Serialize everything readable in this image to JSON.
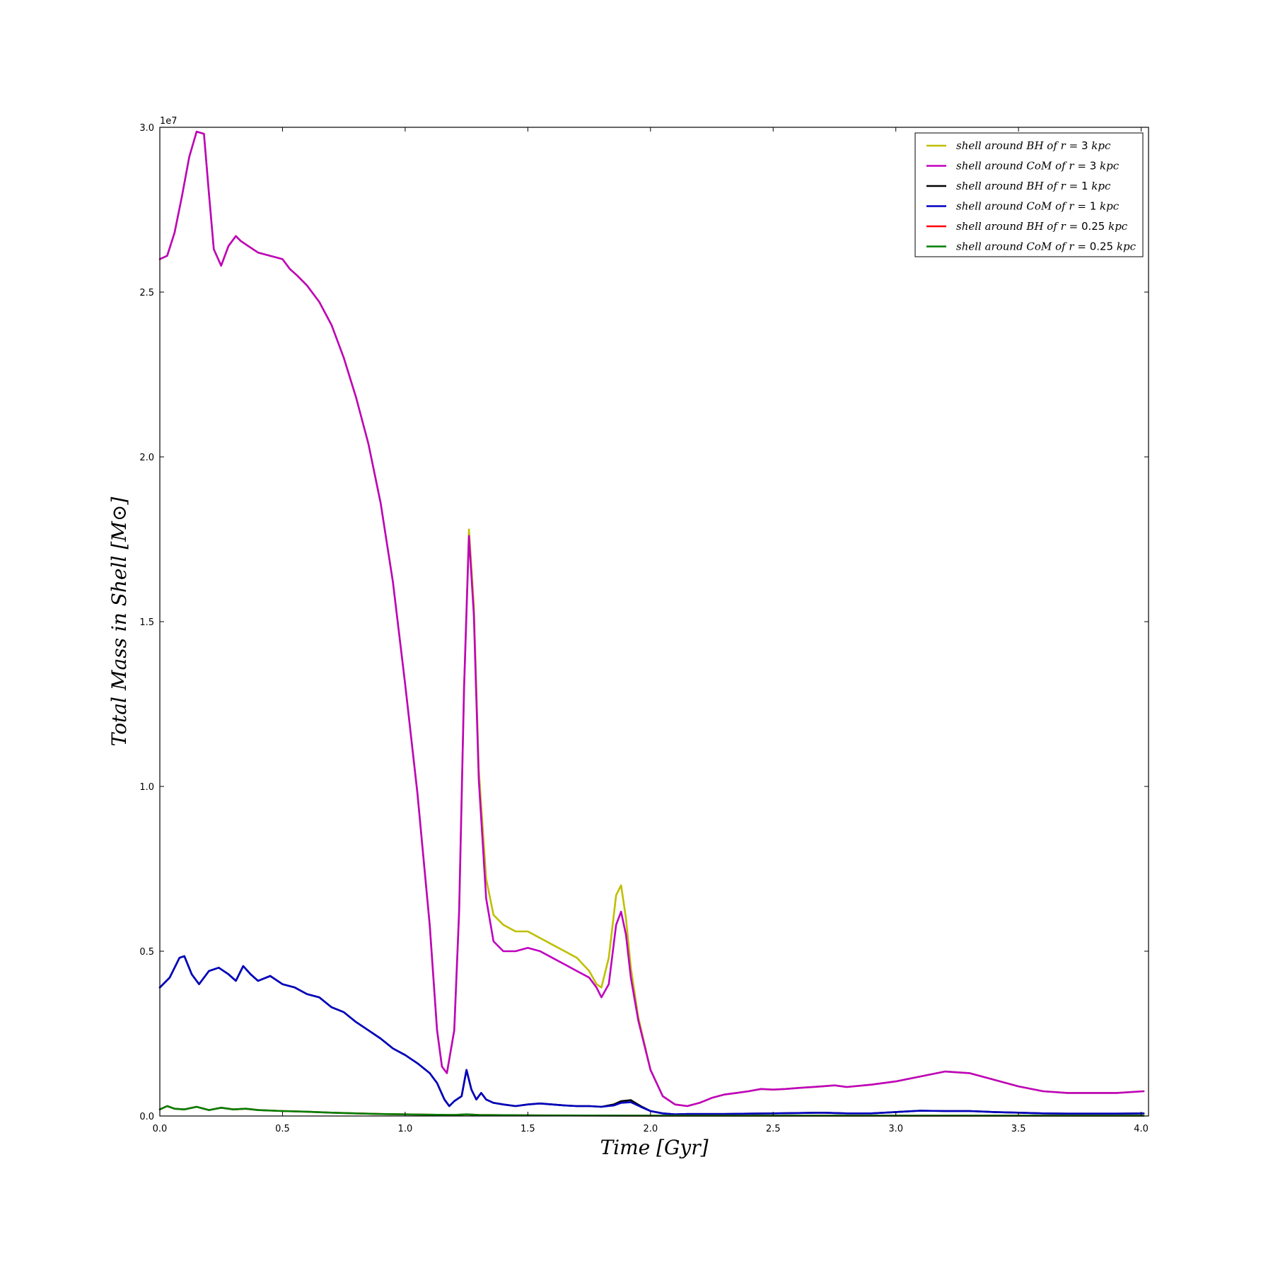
{
  "chart_data": {
    "type": "line",
    "xlabel": "Time [Gyr]",
    "ylabel": "Total Mass in Shell [M⊙]",
    "xlim": [
      0.0,
      4.03
    ],
    "ylim": [
      0.0,
      3.0
    ],
    "y_scale_label": "1e7",
    "xticks": [
      "0.0",
      "0.5",
      "1.0",
      "1.5",
      "2.0",
      "2.5",
      "3.0",
      "3.5",
      "4.0"
    ],
    "yticks": [
      "0.0",
      "0.5",
      "1.0",
      "1.5",
      "2.0",
      "2.5",
      "3.0"
    ],
    "grid": false,
    "legend_position": "top-right",
    "series": [
      {
        "name": "shell around BH of r = 3 kpc",
        "color": "#bfbf00",
        "x": [
          0.0,
          0.03,
          0.06,
          0.09,
          0.12,
          0.15,
          0.18,
          0.2,
          0.22,
          0.25,
          0.28,
          0.31,
          0.33,
          0.36,
          0.4,
          0.45,
          0.5,
          0.53,
          0.56,
          0.6,
          0.65,
          0.7,
          0.75,
          0.8,
          0.85,
          0.9,
          0.95,
          1.0,
          1.05,
          1.1,
          1.13,
          1.15,
          1.17,
          1.2,
          1.22,
          1.24,
          1.26,
          1.28,
          1.3,
          1.33,
          1.36,
          1.4,
          1.45,
          1.5,
          1.55,
          1.6,
          1.65,
          1.7,
          1.75,
          1.78,
          1.8,
          1.83,
          1.86,
          1.88,
          1.9,
          1.92,
          1.95,
          2.0,
          2.05,
          2.1,
          2.15,
          2.2,
          2.25,
          2.3,
          2.35,
          2.4,
          2.45,
          2.5,
          2.55,
          2.6,
          2.7,
          2.75,
          2.8,
          2.9,
          3.0,
          3.1,
          3.2,
          3.3,
          3.4,
          3.5,
          3.6,
          3.7,
          3.8,
          3.9,
          4.01
        ],
        "y": [
          2.6,
          2.61,
          2.68,
          2.79,
          2.91,
          2.987,
          2.98,
          2.8,
          2.63,
          2.58,
          2.64,
          2.67,
          2.655,
          2.64,
          2.62,
          2.61,
          2.6,
          2.57,
          2.55,
          2.52,
          2.47,
          2.4,
          2.3,
          2.18,
          2.04,
          1.86,
          1.62,
          1.31,
          0.98,
          0.58,
          0.26,
          0.15,
          0.13,
          0.26,
          0.62,
          1.3,
          1.78,
          1.55,
          1.05,
          0.72,
          0.61,
          0.58,
          0.56,
          0.56,
          0.54,
          0.52,
          0.5,
          0.48,
          0.44,
          0.4,
          0.39,
          0.48,
          0.67,
          0.7,
          0.6,
          0.45,
          0.3,
          0.14,
          0.06,
          0.035,
          0.03,
          0.04,
          0.055,
          0.065,
          0.07,
          0.075,
          0.082,
          0.08,
          0.082,
          0.085,
          0.09,
          0.093,
          0.088,
          0.095,
          0.105,
          0.12,
          0.135,
          0.13,
          0.11,
          0.09,
          0.075,
          0.07,
          0.07,
          0.07,
          0.075
        ]
      },
      {
        "name": "shell around CoM of r = 3 kpc",
        "color": "#bf00bf",
        "x": [
          0.0,
          0.03,
          0.06,
          0.09,
          0.12,
          0.15,
          0.18,
          0.2,
          0.22,
          0.25,
          0.28,
          0.31,
          0.33,
          0.36,
          0.4,
          0.45,
          0.5,
          0.53,
          0.56,
          0.6,
          0.65,
          0.7,
          0.75,
          0.8,
          0.85,
          0.9,
          0.95,
          1.0,
          1.05,
          1.1,
          1.13,
          1.15,
          1.17,
          1.2,
          1.22,
          1.24,
          1.26,
          1.28,
          1.3,
          1.33,
          1.36,
          1.4,
          1.45,
          1.5,
          1.55,
          1.6,
          1.65,
          1.7,
          1.75,
          1.78,
          1.8,
          1.83,
          1.86,
          1.88,
          1.9,
          1.92,
          1.95,
          2.0,
          2.05,
          2.1,
          2.15,
          2.2,
          2.25,
          2.3,
          2.35,
          2.4,
          2.45,
          2.5,
          2.55,
          2.6,
          2.7,
          2.75,
          2.8,
          2.9,
          3.0,
          3.1,
          3.2,
          3.3,
          3.4,
          3.5,
          3.6,
          3.7,
          3.8,
          3.9,
          4.01
        ],
        "y": [
          2.6,
          2.61,
          2.68,
          2.79,
          2.91,
          2.987,
          2.98,
          2.8,
          2.63,
          2.58,
          2.64,
          2.67,
          2.655,
          2.64,
          2.62,
          2.61,
          2.6,
          2.57,
          2.55,
          2.52,
          2.47,
          2.4,
          2.3,
          2.18,
          2.04,
          1.86,
          1.62,
          1.31,
          0.98,
          0.58,
          0.26,
          0.15,
          0.13,
          0.26,
          0.62,
          1.3,
          1.76,
          1.52,
          1.02,
          0.66,
          0.53,
          0.5,
          0.5,
          0.51,
          0.5,
          0.48,
          0.46,
          0.44,
          0.42,
          0.39,
          0.36,
          0.4,
          0.58,
          0.62,
          0.55,
          0.42,
          0.29,
          0.14,
          0.06,
          0.035,
          0.03,
          0.04,
          0.055,
          0.065,
          0.07,
          0.075,
          0.082,
          0.08,
          0.082,
          0.085,
          0.09,
          0.093,
          0.088,
          0.095,
          0.105,
          0.12,
          0.135,
          0.13,
          0.11,
          0.09,
          0.075,
          0.07,
          0.07,
          0.07,
          0.075
        ]
      },
      {
        "name": "shell around BH of r = 1 kpc",
        "color": "#000000",
        "x": [
          0.0,
          0.04,
          0.08,
          0.1,
          0.13,
          0.16,
          0.2,
          0.24,
          0.28,
          0.31,
          0.34,
          0.37,
          0.4,
          0.45,
          0.5,
          0.55,
          0.6,
          0.65,
          0.7,
          0.75,
          0.8,
          0.85,
          0.9,
          0.95,
          1.0,
          1.05,
          1.1,
          1.13,
          1.16,
          1.18,
          1.2,
          1.23,
          1.25,
          1.27,
          1.29,
          1.31,
          1.33,
          1.36,
          1.4,
          1.45,
          1.5,
          1.55,
          1.6,
          1.65,
          1.7,
          1.75,
          1.8,
          1.85,
          1.88,
          1.92,
          1.96,
          2.0,
          2.05,
          2.1,
          2.15,
          2.2,
          2.3,
          2.4,
          2.5,
          2.6,
          2.7,
          2.8,
          2.9,
          3.0,
          3.1,
          3.2,
          3.3,
          3.4,
          3.5,
          3.6,
          3.7,
          3.8,
          3.9,
          4.01
        ],
        "y": [
          0.39,
          0.42,
          0.48,
          0.485,
          0.43,
          0.4,
          0.44,
          0.45,
          0.43,
          0.41,
          0.455,
          0.43,
          0.41,
          0.425,
          0.4,
          0.39,
          0.37,
          0.36,
          0.33,
          0.315,
          0.285,
          0.26,
          0.235,
          0.205,
          0.185,
          0.16,
          0.13,
          0.1,
          0.05,
          0.03,
          0.045,
          0.06,
          0.14,
          0.08,
          0.05,
          0.07,
          0.05,
          0.04,
          0.035,
          0.03,
          0.035,
          0.038,
          0.035,
          0.032,
          0.03,
          0.03,
          0.028,
          0.035,
          0.045,
          0.048,
          0.03,
          0.015,
          0.008,
          0.005,
          0.006,
          0.006,
          0.006,
          0.007,
          0.008,
          0.009,
          0.01,
          0.008,
          0.008,
          0.012,
          0.016,
          0.015,
          0.015,
          0.012,
          0.01,
          0.008,
          0.007,
          0.007,
          0.007,
          0.008
        ]
      },
      {
        "name": "shell around CoM of r = 1 kpc",
        "color": "#0000bf",
        "x": [
          0.0,
          0.04,
          0.08,
          0.1,
          0.13,
          0.16,
          0.2,
          0.24,
          0.28,
          0.31,
          0.34,
          0.37,
          0.4,
          0.45,
          0.5,
          0.55,
          0.6,
          0.65,
          0.7,
          0.75,
          0.8,
          0.85,
          0.9,
          0.95,
          1.0,
          1.05,
          1.1,
          1.13,
          1.16,
          1.18,
          1.2,
          1.23,
          1.25,
          1.27,
          1.29,
          1.31,
          1.33,
          1.36,
          1.4,
          1.45,
          1.5,
          1.55,
          1.6,
          1.65,
          1.7,
          1.75,
          1.8,
          1.85,
          1.88,
          1.92,
          1.96,
          2.0,
          2.05,
          2.1,
          2.15,
          2.2,
          2.3,
          2.4,
          2.5,
          2.6,
          2.7,
          2.8,
          2.9,
          3.0,
          3.1,
          3.2,
          3.3,
          3.4,
          3.5,
          3.6,
          3.7,
          3.8,
          3.9,
          4.01
        ],
        "y": [
          0.39,
          0.42,
          0.48,
          0.485,
          0.43,
          0.4,
          0.44,
          0.45,
          0.43,
          0.41,
          0.455,
          0.43,
          0.41,
          0.425,
          0.4,
          0.39,
          0.37,
          0.36,
          0.33,
          0.315,
          0.285,
          0.26,
          0.235,
          0.205,
          0.185,
          0.16,
          0.13,
          0.1,
          0.05,
          0.03,
          0.045,
          0.06,
          0.14,
          0.08,
          0.05,
          0.07,
          0.05,
          0.04,
          0.035,
          0.03,
          0.035,
          0.038,
          0.035,
          0.032,
          0.03,
          0.03,
          0.028,
          0.032,
          0.04,
          0.042,
          0.028,
          0.015,
          0.008,
          0.005,
          0.006,
          0.006,
          0.006,
          0.007,
          0.008,
          0.009,
          0.01,
          0.008,
          0.008,
          0.012,
          0.016,
          0.015,
          0.015,
          0.012,
          0.01,
          0.008,
          0.007,
          0.007,
          0.007,
          0.008
        ]
      },
      {
        "name": "shell around BH of r = 0.25 kpc",
        "color": "#ff0000",
        "x": [
          0.0,
          0.03,
          0.06,
          0.1,
          0.15,
          0.2,
          0.25,
          0.3,
          0.35,
          0.4,
          0.5,
          0.6,
          0.7,
          0.8,
          0.9,
          1.0,
          1.2,
          1.25,
          1.3,
          1.5,
          2.0,
          2.5,
          3.0,
          3.5,
          4.01
        ],
        "y": [
          0.02,
          0.03,
          0.022,
          0.02,
          0.028,
          0.018,
          0.025,
          0.02,
          0.022,
          0.018,
          0.015,
          0.013,
          0.01,
          0.008,
          0.006,
          0.005,
          0.003,
          0.005,
          0.003,
          0.002,
          0.001,
          0.001,
          0.001,
          0.001,
          0.001
        ]
      },
      {
        "name": "shell around CoM of r = 0.25 kpc",
        "color": "#007f00",
        "x": [
          0.0,
          0.03,
          0.06,
          0.1,
          0.15,
          0.2,
          0.25,
          0.3,
          0.35,
          0.4,
          0.5,
          0.6,
          0.7,
          0.8,
          0.9,
          1.0,
          1.2,
          1.25,
          1.3,
          1.5,
          2.0,
          2.5,
          3.0,
          3.5,
          4.01
        ],
        "y": [
          0.02,
          0.03,
          0.022,
          0.02,
          0.028,
          0.018,
          0.025,
          0.02,
          0.022,
          0.018,
          0.015,
          0.013,
          0.01,
          0.008,
          0.006,
          0.005,
          0.003,
          0.005,
          0.003,
          0.002,
          0.001,
          0.001,
          0.001,
          0.001,
          0.001
        ]
      }
    ],
    "legend": [
      {
        "prefix": "shell around BH of r =",
        "value": "3",
        "unit": "kpc",
        "color": "#bfbf00"
      },
      {
        "prefix": "shell around CoM of r =",
        "value": "3",
        "unit": "kpc",
        "color": "#bf00bf"
      },
      {
        "prefix": "shell around BH of r =",
        "value": "1",
        "unit": "kpc",
        "color": "#000000"
      },
      {
        "prefix": "shell around CoM of r =",
        "value": "1",
        "unit": "kpc",
        "color": "#0000bf"
      },
      {
        "prefix": "shell around BH of r =",
        "value": "0.25",
        "unit": "kpc",
        "color": "#ff0000"
      },
      {
        "prefix": "shell around CoM of r =",
        "value": "0.25",
        "unit": "kpc",
        "color": "#007f00"
      }
    ]
  }
}
